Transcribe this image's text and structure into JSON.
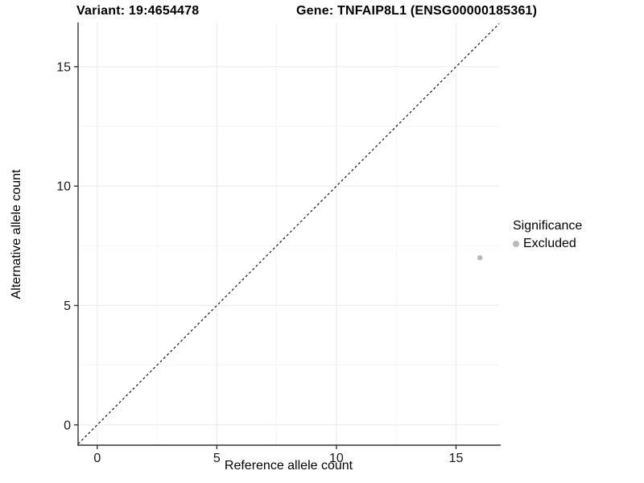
{
  "header": {
    "variant_title": "Variant: 19:4654478",
    "gene_title": "Gene: TNFAIP8L1 (ENSG00000185361)"
  },
  "chart_data": {
    "type": "scatter",
    "xlabel": "Reference allele count",
    "ylabel": "Alternative allele count",
    "x_ticks": [
      0,
      5,
      10,
      15
    ],
    "y_ticks": [
      0,
      5,
      10,
      15
    ],
    "x_minor_gridlines": [
      2.5,
      7.5,
      12.5
    ],
    "y_minor_gridlines": [
      2.5,
      7.5,
      12.5
    ],
    "xlim": [
      -0.8,
      16.8
    ],
    "ylim": [
      -0.85,
      16.85
    ],
    "grid": true,
    "reference_line": {
      "type": "identity y=x",
      "style": "dashed",
      "color": "#000000"
    },
    "series": [
      {
        "name": "Excluded",
        "color": "#b9b9b9",
        "points": [
          [
            16,
            7
          ]
        ]
      }
    ],
    "legend": {
      "position": "right",
      "title": "Significance",
      "entries": [
        {
          "label": "Excluded",
          "color": "#b9b9b9"
        }
      ]
    },
    "colors": {
      "grid_major": "#ebebeb",
      "grid_minor": "#f2f2f2",
      "axis_line": "#333333",
      "tick_label": "#1a1a1a",
      "background": "#ffffff"
    }
  }
}
